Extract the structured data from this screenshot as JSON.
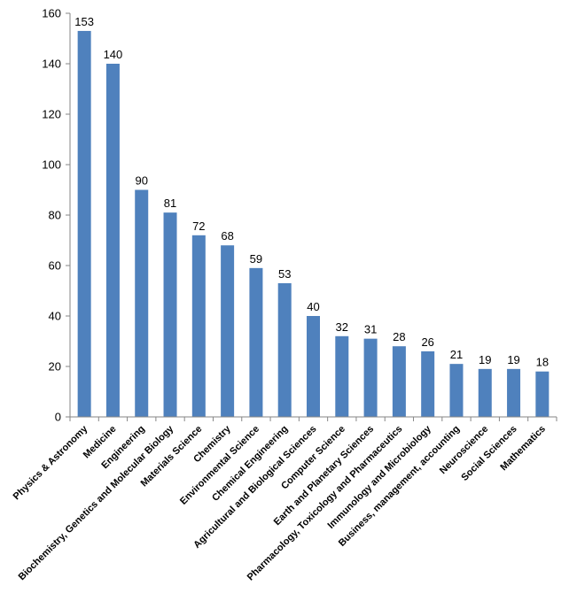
{
  "chart_data": {
    "type": "bar",
    "categories": [
      "Physics & Astronomy",
      "Medicine",
      "Engineering",
      "Biochemistry, Genetics and Molecular Biology",
      "Materials Science",
      "Chemistry",
      "Environmental Science",
      "Chemical Engineering",
      "Agricultural and Biological Sciences",
      "Computer Science",
      "Earth and Planetary Sciences",
      "Pharmacology, Toxicology and Pharmaceutics",
      "Immunology and Microbiology",
      "Business, management, accounting",
      "Neuroscience",
      "Social Sciences",
      "Mathematics"
    ],
    "values": [
      153,
      140,
      90,
      81,
      72,
      68,
      59,
      53,
      40,
      32,
      31,
      28,
      26,
      21,
      19,
      19,
      18
    ],
    "ylim": [
      0,
      160
    ],
    "yticks": [
      0,
      20,
      40,
      60,
      80,
      100,
      120,
      140,
      160
    ],
    "bar_color": "#4F81BD",
    "axis_color": "#868686",
    "grid": false,
    "legend": "none",
    "data_labels": true
  }
}
